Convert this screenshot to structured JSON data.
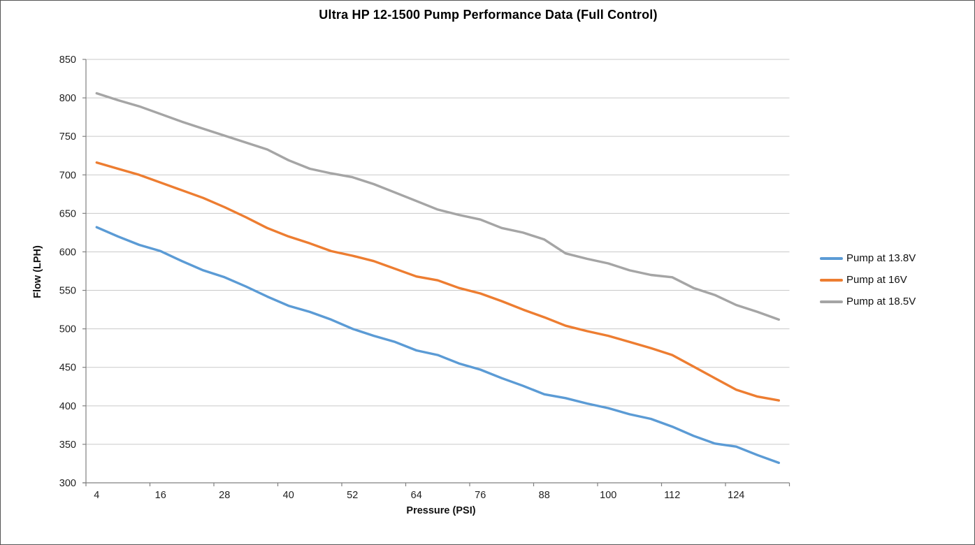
{
  "title": "Ultra HP 12-1500 Pump Performance Data (Full Control)",
  "chart_data": {
    "type": "line",
    "title": "Ultra HP 12-1500 Pump Performance Data (Full Control)",
    "xlabel": "Pressure (PSI)",
    "ylabel": "Flow (LPH)",
    "x": [
      4,
      8,
      12,
      16,
      20,
      24,
      28,
      32,
      36,
      40,
      44,
      48,
      52,
      56,
      60,
      64,
      68,
      72,
      76,
      80,
      84,
      88,
      92,
      96,
      100,
      104,
      108,
      112,
      116,
      120,
      124,
      128,
      132
    ],
    "xtick_labels": [
      "4",
      "16",
      "28",
      "40",
      "52",
      "64",
      "76",
      "88",
      "100",
      "112",
      "124"
    ],
    "xtick_label_every": 3,
    "ylim": [
      300,
      850
    ],
    "ytick_step": 50,
    "ytick_labels": [
      "300",
      "350",
      "400",
      "450",
      "500",
      "550",
      "600",
      "650",
      "700",
      "750",
      "800",
      "850"
    ],
    "grid": "horizontal",
    "legend_position": "right",
    "series": [
      {
        "name": "Pump at 13.8V",
        "color": "#5B9BD5",
        "values": [
          632,
          620,
          609,
          601,
          588,
          576,
          567,
          555,
          542,
          530,
          522,
          512,
          500,
          491,
          483,
          472,
          466,
          455,
          447,
          436,
          426,
          415,
          410,
          403,
          397,
          389,
          383,
          373,
          361,
          351,
          347,
          336,
          326
        ]
      },
      {
        "name": "Pump at 16V",
        "color": "#ED7D31",
        "values": [
          716,
          708,
          700,
          690,
          680,
          670,
          658,
          645,
          631,
          620,
          611,
          601,
          595,
          588,
          578,
          568,
          563,
          553,
          546,
          536,
          525,
          515,
          504,
          497,
          491,
          483,
          475,
          466,
          451,
          436,
          421,
          412,
          407
        ]
      },
      {
        "name": "Pump at 18.5V",
        "color": "#A5A5A5",
        "values": [
          806,
          797,
          789,
          779,
          769,
          760,
          751,
          742,
          733,
          719,
          708,
          702,
          697,
          688,
          677,
          666,
          655,
          648,
          642,
          631,
          625,
          616,
          598,
          591,
          585,
          576,
          570,
          567,
          553,
          544,
          531,
          522,
          512
        ]
      }
    ],
    "colors": {
      "gridline": "#C9C9C9",
      "axis_line": "#808080",
      "tick_label": "#1F1F1F",
      "title_text": "#000000",
      "background": "#FFFFFF",
      "frame_border": "#555555"
    }
  }
}
